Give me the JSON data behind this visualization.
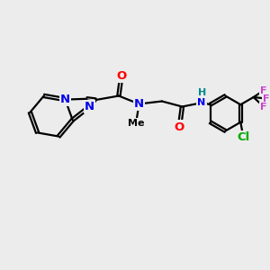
{
  "bg_color": "#ececec",
  "bond_color": "#000000",
  "bond_width": 1.6,
  "atom_colors": {
    "N": "#0000ee",
    "O": "#ff0000",
    "Cl": "#00aa00",
    "F": "#cc44cc",
    "H": "#008888",
    "C": "#000000"
  },
  "font_size_atom": 9.5,
  "font_size_small": 8.0
}
